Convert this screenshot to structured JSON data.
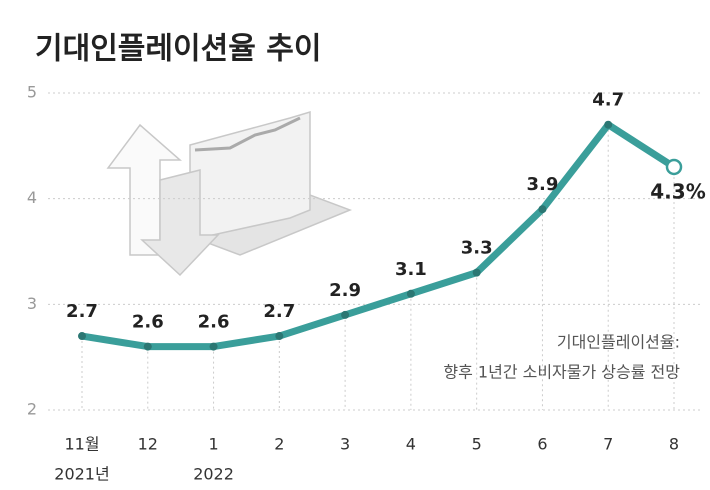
{
  "chart_data": {
    "type": "line",
    "title": "기대인플레이션율 추이",
    "categories": [
      "11월",
      "12",
      "1",
      "2",
      "3",
      "4",
      "5",
      "6",
      "7",
      "8"
    ],
    "x_sublabels": [
      "2021년",
      null,
      "2022",
      null,
      null,
      null,
      null,
      null,
      null,
      null
    ],
    "values": [
      2.7,
      2.6,
      2.6,
      2.7,
      2.9,
      3.1,
      3.3,
      3.9,
      4.7,
      4.3
    ],
    "value_labels": [
      "2.7",
      "2.6",
      "2.6",
      "2.7",
      "2.9",
      "3.1",
      "3.3",
      "3.9",
      "4.7",
      "4.3%"
    ],
    "color": "#3a9e9a",
    "ylim": [
      2,
      5
    ],
    "yticks": [
      2,
      3,
      4,
      5
    ],
    "grid": true,
    "annotation": [
      "기대인플레이션율:",
      "향후 1년간 소비자물가 상승률 전망"
    ]
  }
}
